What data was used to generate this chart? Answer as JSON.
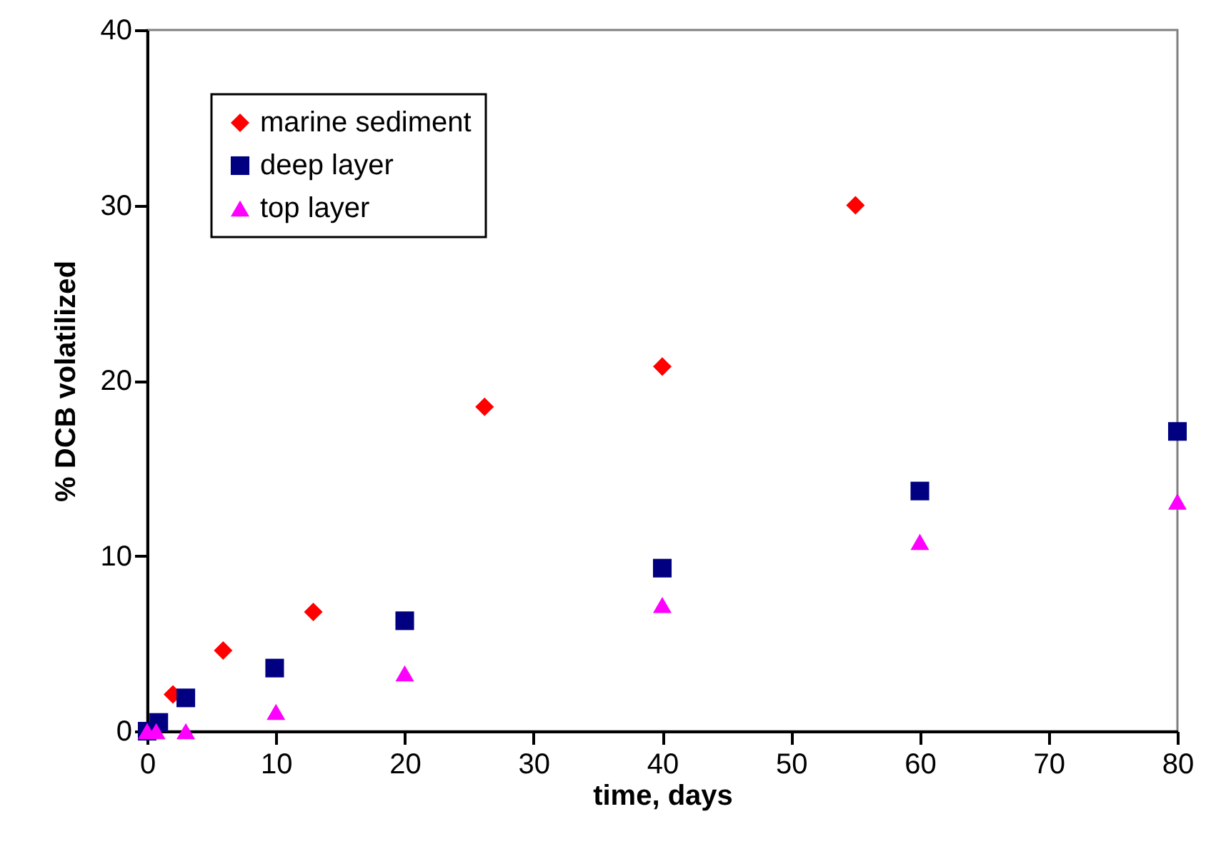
{
  "chart_data": {
    "type": "scatter",
    "xlabel": "time, days",
    "ylabel": "% DCB volatilized",
    "xlim": [
      0,
      80
    ],
    "xticks": [
      0,
      10,
      20,
      30,
      40,
      50,
      60,
      70,
      80
    ],
    "ylim": [
      0,
      40
    ],
    "yticks": [
      0,
      10,
      20,
      30,
      40
    ],
    "grid": false,
    "legend": "top left",
    "series": [
      {
        "name": "marine sediment",
        "color": "#ff0000",
        "marker": "diamond",
        "x": [
          2,
          5.9,
          12.9,
          26.2,
          40,
          55
        ],
        "values": [
          2.1,
          4.6,
          6.8,
          18.5,
          20.8,
          30
        ]
      },
      {
        "name": "deep layer",
        "color": "#000080",
        "marker": "square",
        "x": [
          0,
          0.9,
          3,
          9.9,
          20,
          40,
          60,
          80
        ],
        "values": [
          0,
          0.5,
          1.9,
          3.6,
          6.3,
          9.3,
          13.7,
          17.1
        ]
      },
      {
        "name": "top layer",
        "color": "#ff00ff",
        "marker": "triangle",
        "x": [
          0,
          0.7,
          3,
          10,
          20,
          40,
          60,
          80
        ],
        "values": [
          0,
          0,
          0,
          1.1,
          3.3,
          7.2,
          10.8,
          13.1
        ]
      }
    ]
  }
}
